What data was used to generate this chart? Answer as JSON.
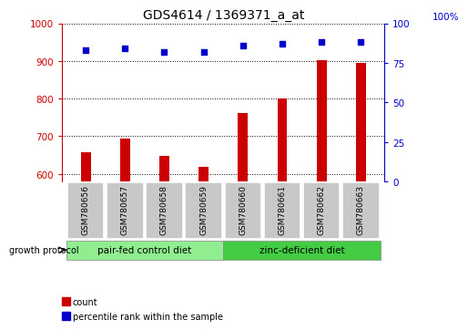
{
  "title": "GDS4614 / 1369371_a_at",
  "samples": [
    "GSM780656",
    "GSM780657",
    "GSM780658",
    "GSM780659",
    "GSM780660",
    "GSM780661",
    "GSM780662",
    "GSM780663"
  ],
  "counts": [
    658,
    693,
    647,
    618,
    762,
    800,
    903,
    895
  ],
  "percentiles": [
    83,
    84,
    82,
    82,
    86,
    87,
    88,
    88
  ],
  "ylim_left": [
    580,
    1000
  ],
  "ylim_right": [
    0,
    100
  ],
  "yticks_left": [
    600,
    700,
    800,
    900,
    1000
  ],
  "yticks_right": [
    0,
    25,
    50,
    75,
    100
  ],
  "groups": [
    {
      "label": "pair-fed control diet",
      "start": 0,
      "end": 3,
      "color": "#90ee90"
    },
    {
      "label": "zinc-deficient diet",
      "start": 4,
      "end": 7,
      "color": "#44cc44"
    }
  ],
  "group_protocol_label": "growth protocol",
  "bar_color": "#cc0000",
  "dot_color": "#0000cc",
  "tick_label_bg": "#c8c8c8",
  "legend_items": [
    {
      "label": "count",
      "color": "#cc0000"
    },
    {
      "label": "percentile rank within the sample",
      "color": "#0000cc"
    }
  ],
  "left_axis_color": "#cc0000",
  "right_axis_color": "#0000cc",
  "right_axis_label": "100%"
}
